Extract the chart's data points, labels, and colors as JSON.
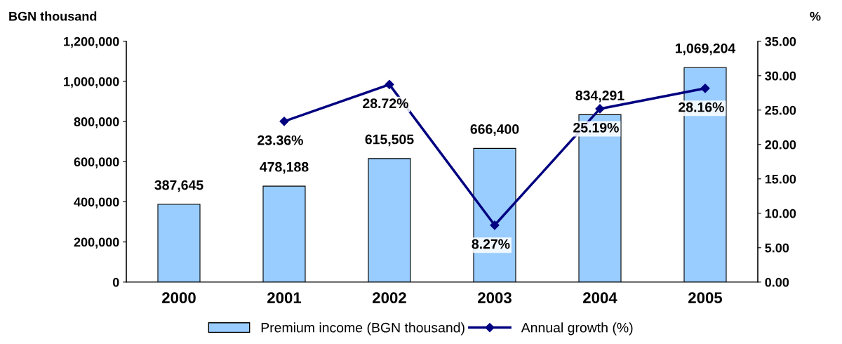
{
  "chart_data": {
    "type": "bar",
    "ylabel": "BGN thousand",
    "y2label": "%",
    "categories": [
      "2000",
      "2001",
      "2002",
      "2003",
      "2004",
      "2005"
    ],
    "series": [
      {
        "name": "Premium income (BGN thousand)",
        "color": "#99ccff",
        "values": [
          387645,
          478188,
          615505,
          666400,
          834291,
          1069204
        ],
        "value_labels": [
          "387,645",
          "478,188",
          "615,505",
          "666,400",
          "834,291",
          "1,069,204"
        ]
      },
      {
        "name": "Annual growth (%)",
        "type": "line",
        "axis": "y2",
        "color": "#000080",
        "marker": "diamond",
        "values": [
          null,
          23.36,
          28.72,
          8.27,
          25.19,
          28.16
        ],
        "value_labels": [
          null,
          "23.36%",
          "28.72%",
          "8.27%",
          "25.19%",
          "28.16%"
        ]
      }
    ],
    "ylim": [
      0,
      1200000
    ],
    "yticks": [
      {
        "value": 0,
        "label": "0"
      },
      {
        "value": 200000,
        "label": "200,000"
      },
      {
        "value": 400000,
        "label": "400,000"
      },
      {
        "value": 600000,
        "label": "600,000"
      },
      {
        "value": 800000,
        "label": "800,000"
      },
      {
        "value": 1000000,
        "label": "1,000,000"
      },
      {
        "value": 1200000,
        "label": "1,200,000"
      }
    ],
    "y2lim": [
      0,
      35
    ],
    "y2ticks": [
      {
        "value": 0,
        "label": "0.00"
      },
      {
        "value": 5,
        "label": "5.00"
      },
      {
        "value": 10,
        "label": "10.00"
      },
      {
        "value": 15,
        "label": "15.00"
      },
      {
        "value": 20,
        "label": "20.00"
      },
      {
        "value": 25,
        "label": "25.00"
      },
      {
        "value": 30,
        "label": "30.00"
      },
      {
        "value": 35,
        "label": "35.00"
      }
    ],
    "grid": false,
    "legend": "bottom"
  }
}
